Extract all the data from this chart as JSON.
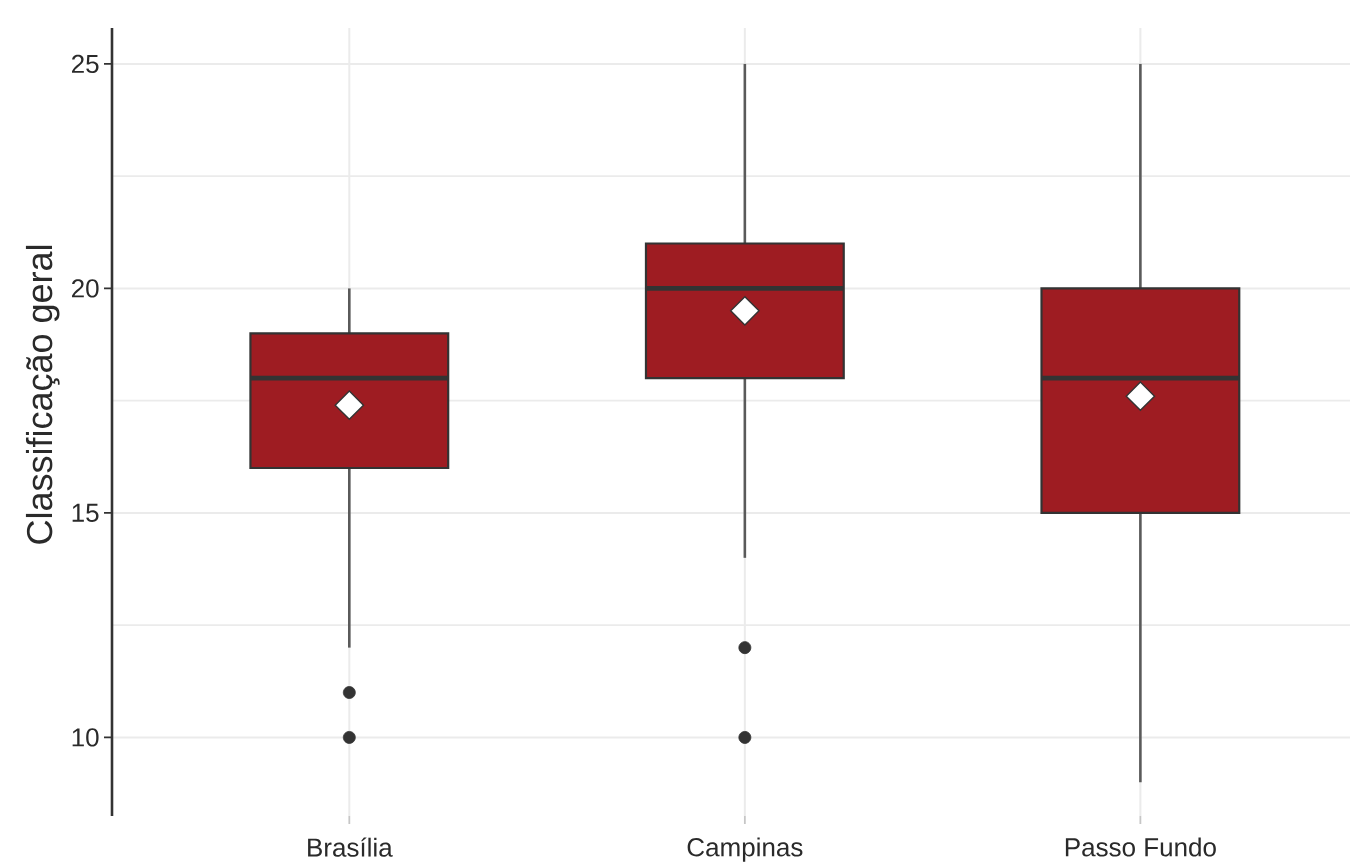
{
  "chart_data": {
    "type": "box",
    "ylabel": "Classificação geral",
    "categories": [
      "Brasília",
      "Campinas",
      "Passo Fundo"
    ],
    "boxes": [
      {
        "low": 12,
        "q1": 16,
        "median": 18,
        "q3": 19,
        "high": 20,
        "mean": 17.4,
        "outliers": [
          11,
          10
        ]
      },
      {
        "low": 14,
        "q1": 18,
        "median": 20,
        "q3": 21,
        "high": 25,
        "mean": 19.5,
        "outliers": [
          12,
          10
        ]
      },
      {
        "low": 9,
        "q1": 15,
        "median": 18,
        "q3": 20,
        "high": 25,
        "mean": 17.6
      }
    ],
    "color": "#9e1c22",
    "ylim": [
      8.25,
      25.8
    ],
    "yticks": [
      10,
      {
        "value": 12.5,
        "label": null
      },
      15,
      {
        "value": 17.5,
        "label": null
      },
      20,
      {
        "value": 22.5,
        "label": null
      },
      25
    ],
    "grid": true
  }
}
